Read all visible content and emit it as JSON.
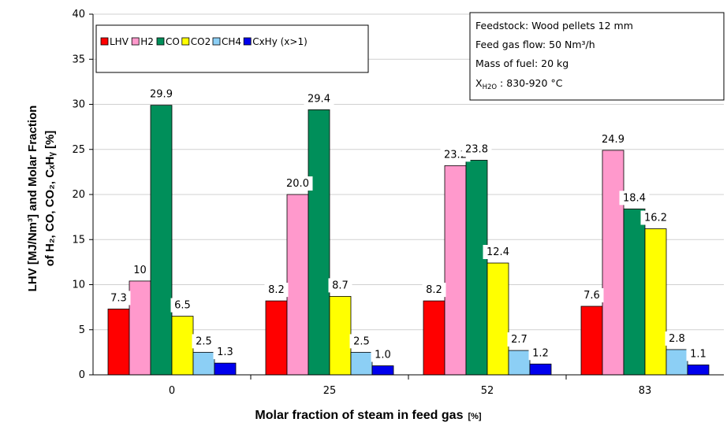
{
  "chart_data": {
    "type": "bar",
    "categories": [
      "0",
      "25",
      "52",
      "83"
    ],
    "series": [
      {
        "name": "LHV",
        "color": "#ff0000",
        "values": [
          7.3,
          8.2,
          8.2,
          7.6
        ],
        "labels": [
          "7.3",
          "8.2",
          "8.2",
          "7.6"
        ]
      },
      {
        "name": "H2",
        "color": "#ff99cc",
        "values": [
          10.4,
          20.0,
          23.2,
          24.9
        ],
        "labels": [
          "10",
          "20.0",
          "23.2",
          "24.9"
        ]
      },
      {
        "name": "CO",
        "color": "#008f5a",
        "values": [
          29.9,
          29.4,
          23.8,
          18.4
        ],
        "labels": [
          "29.9",
          "29.4",
          "23.8",
          "18.4"
        ]
      },
      {
        "name": "CO2",
        "color": "#ffff00",
        "values": [
          6.5,
          8.7,
          12.4,
          16.2
        ],
        "labels": [
          "6.5",
          "8.7",
          "12.4",
          "16.2"
        ]
      },
      {
        "name": "CH4",
        "color": "#8ccff5",
        "values": [
          2.5,
          2.5,
          2.7,
          2.8
        ],
        "labels": [
          "2.5",
          "2.5",
          "2.7",
          "2.8"
        ]
      },
      {
        "name": "CxHy (x>1)",
        "color": "#0000ee",
        "values": [
          1.3,
          1.0,
          1.2,
          1.1
        ],
        "labels": [
          "1.3",
          "1.0",
          "1.2",
          "1.1"
        ]
      }
    ],
    "y_ticks": [
      "0",
      "5",
      "10",
      "15",
      "20",
      "25",
      "30",
      "35",
      "40"
    ],
    "ylim": [
      0,
      40
    ],
    "xlabel_main": "Molar fraction of steam in feed gas",
    "xlabel_unit": "[%]",
    "ylabel_line1": "LHV  [MJ/Nm³] and Molar Fraction",
    "ylabel_line2": "of H₂, CO, CO₂, CₓHᵧ  [%]",
    "legend_position": "top-left",
    "grid": "horizontal",
    "annotation": {
      "line1": "Feedstock: Wood pellets 12 mm",
      "line2": "Feed gas flow: 50 Nm³/h",
      "line3": "Mass of fuel: 20 kg",
      "line4_symbol": "X",
      "line4_subscript": "H2O",
      "line4_value": " : 830-920 °C"
    }
  }
}
